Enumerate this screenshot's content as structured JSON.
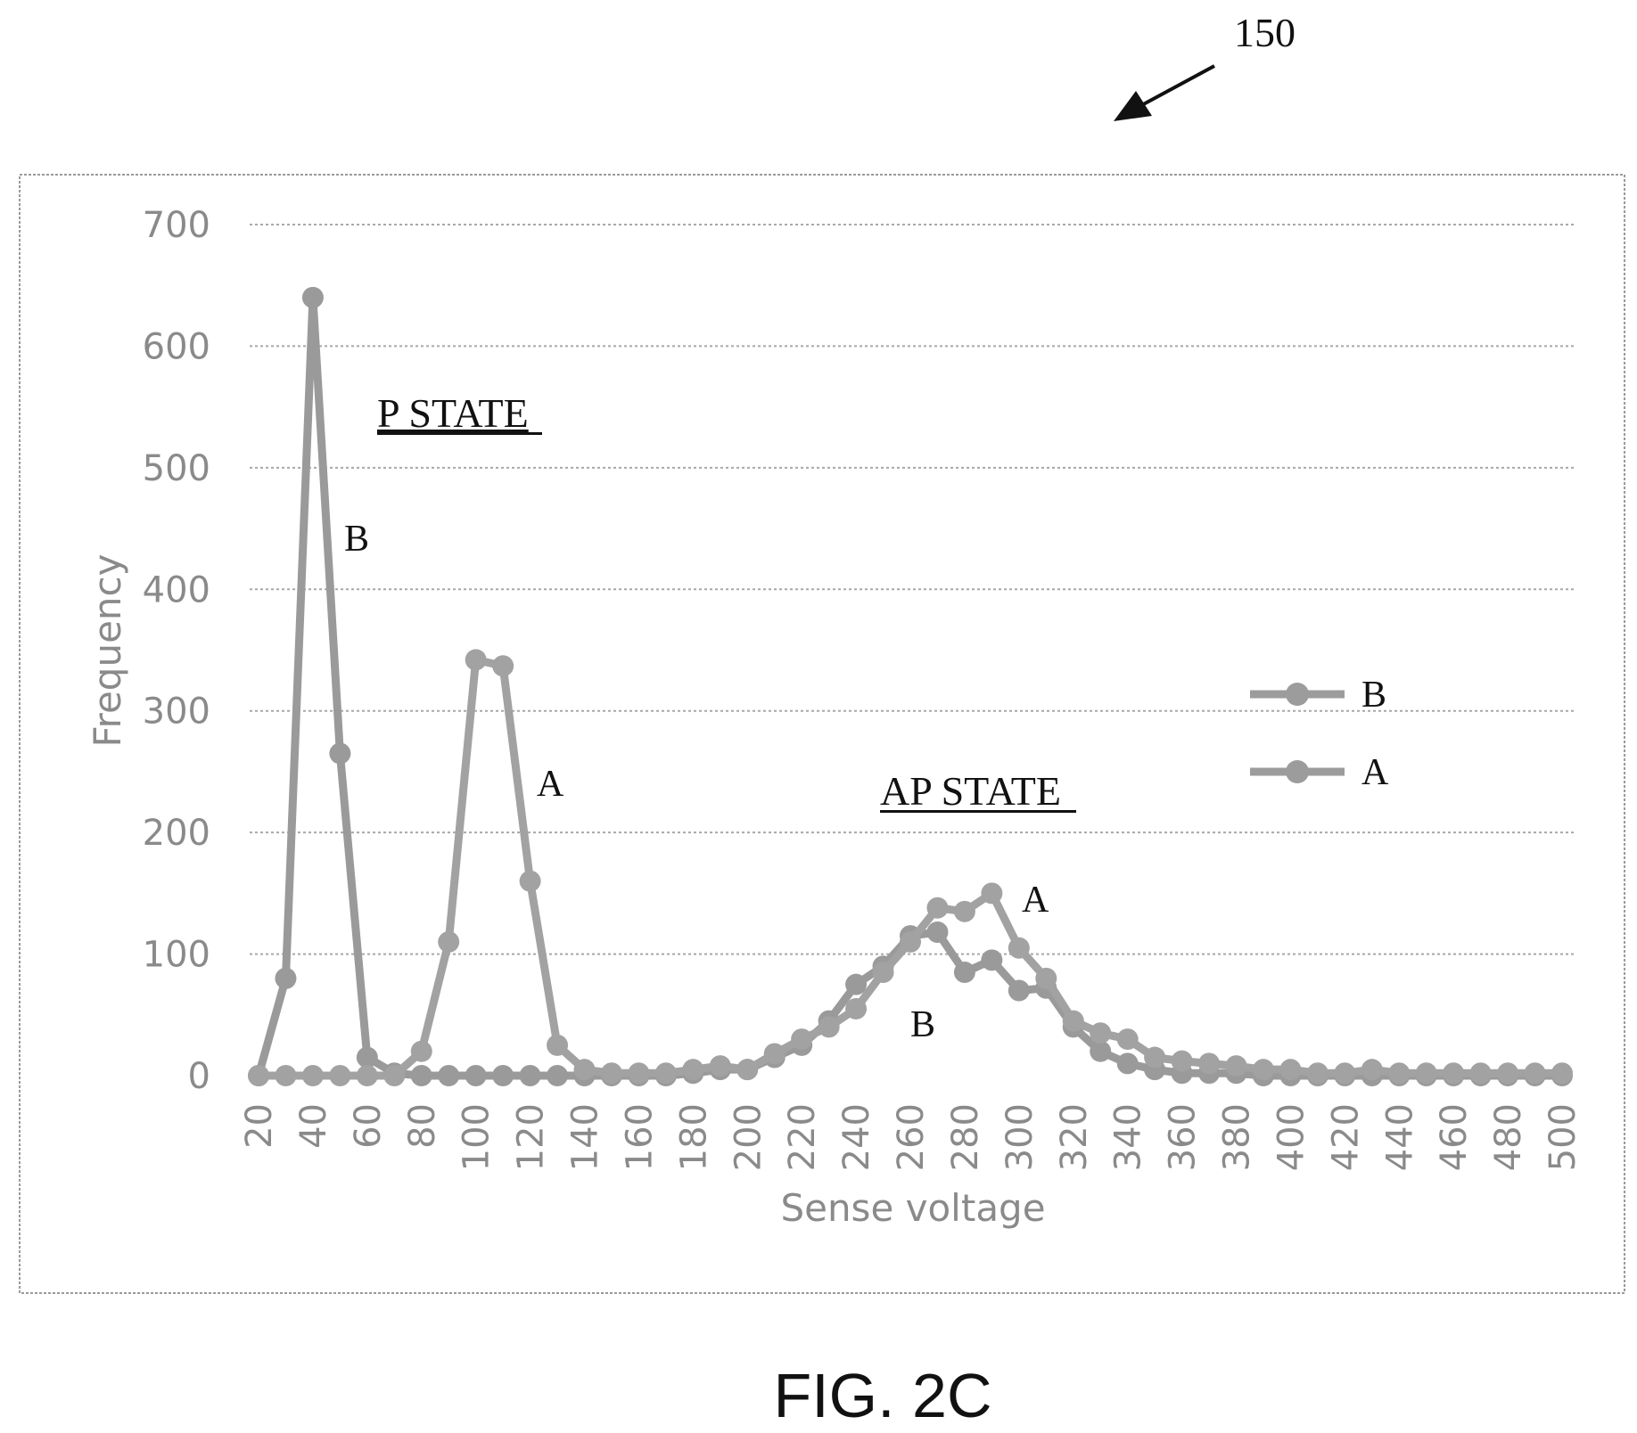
{
  "figure": {
    "ref_numeral": "150",
    "caption": "FIG. 2C"
  },
  "chart_data": {
    "type": "line",
    "title": "",
    "xlabel": "Sense voltage",
    "ylabel": "Frequency",
    "xlim": [
      20,
      500
    ],
    "ylim": [
      0,
      700
    ],
    "x_ticks": [
      20,
      40,
      60,
      80,
      100,
      120,
      140,
      160,
      180,
      200,
      220,
      240,
      260,
      280,
      300,
      320,
      340,
      360,
      380,
      400,
      420,
      440,
      460,
      480,
      500
    ],
    "y_ticks": [
      0,
      100,
      200,
      300,
      400,
      500,
      600,
      700
    ],
    "grid": true,
    "legend_position": "right",
    "x": [
      20,
      30,
      40,
      50,
      60,
      70,
      80,
      90,
      100,
      110,
      120,
      130,
      140,
      150,
      160,
      170,
      180,
      190,
      200,
      210,
      220,
      230,
      240,
      250,
      260,
      270,
      280,
      290,
      300,
      310,
      320,
      330,
      340,
      350,
      360,
      370,
      380,
      390,
      400,
      410,
      420,
      430,
      440,
      450,
      460,
      470,
      480,
      490,
      500
    ],
    "series": [
      {
        "name": "B",
        "values": [
          0,
          80,
          640,
          265,
          15,
          2,
          0,
          0,
          0,
          0,
          0,
          0,
          0,
          0,
          0,
          0,
          2,
          5,
          5,
          15,
          25,
          45,
          75,
          90,
          115,
          118,
          85,
          95,
          70,
          72,
          40,
          20,
          10,
          5,
          2,
          2,
          2,
          0,
          0,
          0,
          0,
          0,
          0,
          0,
          0,
          0,
          0,
          0,
          0
        ]
      },
      {
        "name": "A",
        "values": [
          0,
          0,
          0,
          0,
          0,
          0,
          20,
          110,
          342,
          337,
          160,
          25,
          5,
          2,
          2,
          2,
          5,
          8,
          5,
          18,
          30,
          40,
          55,
          85,
          110,
          138,
          135,
          150,
          105,
          80,
          45,
          35,
          30,
          15,
          12,
          10,
          8,
          5,
          5,
          2,
          2,
          5,
          2,
          2,
          2,
          2,
          2,
          2,
          2
        ]
      }
    ],
    "annotations": {
      "p_state": "P STATE",
      "ap_state": "AP STATE",
      "label_b": "B",
      "label_a": "A"
    }
  }
}
